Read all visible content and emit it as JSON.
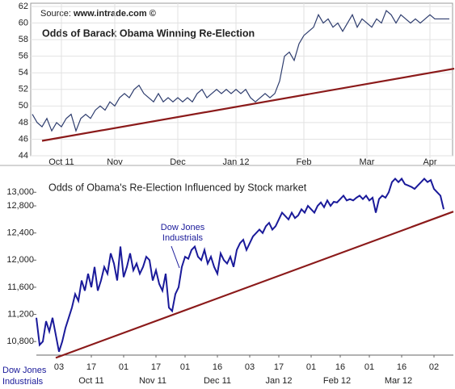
{
  "chart_data": [
    {
      "type": "line",
      "title": "Odds of Barack Obama Winning Re-Election",
      "source": "Source:",
      "source_site": "www.intrade.com ©",
      "color": "#2e3d6e",
      "grid": true,
      "xlim": [
        0,
        87
      ],
      "ylim": [
        44,
        62
      ],
      "yticks": [
        44,
        46,
        48,
        50,
        52,
        54,
        56,
        58,
        60,
        62
      ],
      "xticks": [
        {
          "value": 6,
          "label": "Oct 11"
        },
        {
          "value": 17,
          "label": "Nov"
        },
        {
          "value": 30,
          "label": "Dec"
        },
        {
          "value": 42,
          "label": "Jan 12"
        },
        {
          "value": 56,
          "label": "Feb"
        },
        {
          "value": 69,
          "label": "Mar"
        },
        {
          "value": 82,
          "label": "Apr"
        }
      ],
      "values": [
        49,
        48,
        47.5,
        48.5,
        47,
        48,
        47.5,
        48.5,
        49,
        47,
        48.5,
        49,
        48.5,
        49.5,
        50,
        49.5,
        50.5,
        50,
        51,
        51.5,
        51,
        52,
        52.5,
        51.5,
        51,
        50.5,
        51.5,
        50.5,
        51,
        50.5,
        51,
        50.5,
        51,
        50.5,
        51.5,
        52,
        51,
        51.5,
        52,
        51.5,
        52,
        51.5,
        52,
        51.5,
        52,
        51,
        50.5,
        51,
        51.5,
        51,
        51.5,
        53,
        56,
        56.5,
        55.5,
        57.5,
        58.5,
        59,
        59.5,
        61,
        60,
        60.5,
        59.5,
        60,
        59,
        60,
        61,
        59.5,
        60.5,
        60,
        59.5,
        60.5,
        60,
        61.5,
        61,
        60,
        61,
        60.5,
        60,
        60.5,
        60,
        60.5,
        61,
        60.5,
        60.5,
        60.5,
        60.5
      ],
      "trend": {
        "color": "#8b1a1a",
        "x": [
          2,
          87
        ],
        "values": [
          45.8,
          54.5
        ]
      }
    },
    {
      "type": "line",
      "title": "Odds of Obama's Re-Election Influenced by Stock market",
      "annotation": [
        "Dow Jones",
        "Industrials"
      ],
      "axis_note": [
        "Dow Jones",
        "Industrials"
      ],
      "color": "#1a1a9a",
      "grid": false,
      "xlim": [
        0,
        129
      ],
      "ylim": [
        10600,
        13360
      ],
      "yticks": [
        {
          "value": 10800,
          "label": "10,800"
        },
        {
          "value": 11200,
          "label": "11,200"
        },
        {
          "value": 11600,
          "label": "11,600"
        },
        {
          "value": 12000,
          "label": "12,000"
        },
        {
          "value": 12400,
          "label": "12,400"
        },
        {
          "value": 12800,
          "label": "12,800"
        },
        {
          "value": 13000,
          "label": "13,000"
        }
      ],
      "xticks": [
        {
          "value": 7,
          "label": "03"
        },
        {
          "value": 17,
          "label": "17"
        },
        {
          "value": 27,
          "label": "01"
        },
        {
          "value": 37,
          "label": "17"
        },
        {
          "value": 46,
          "label": "01"
        },
        {
          "value": 56,
          "label": "16"
        },
        {
          "value": 66,
          "label": "03"
        },
        {
          "value": 75,
          "label": "17"
        },
        {
          "value": 85,
          "label": "01"
        },
        {
          "value": 94,
          "label": "16"
        },
        {
          "value": 103,
          "label": "01"
        },
        {
          "value": 113,
          "label": "16"
        },
        {
          "value": 123,
          "label": "02"
        }
      ],
      "xgroups": [
        {
          "value": 17,
          "label": "Oct 11"
        },
        {
          "value": 36,
          "label": "Nov 11"
        },
        {
          "value": 56,
          "label": "Dec 11"
        },
        {
          "value": 75,
          "label": "Jan 12"
        },
        {
          "value": 93,
          "label": "Feb 12"
        },
        {
          "value": 112,
          "label": "Mar 12"
        }
      ],
      "values": [
        11150,
        10750,
        10800,
        11100,
        10950,
        11150,
        10900,
        10650,
        10800,
        11000,
        11150,
        11300,
        11500,
        11400,
        11700,
        11550,
        11800,
        11600,
        11900,
        11550,
        11700,
        11900,
        11800,
        12100,
        11950,
        11700,
        12200,
        11750,
        11900,
        12100,
        11850,
        11950,
        11800,
        11900,
        12050,
        12000,
        11700,
        11850,
        11650,
        11550,
        11800,
        11300,
        11250,
        11500,
        11600,
        11900,
        12050,
        12020,
        12150,
        12200,
        12050,
        12000,
        12150,
        11950,
        12050,
        11900,
        11800,
        12100,
        12000,
        11950,
        12050,
        11900,
        12150,
        12250,
        12300,
        12150,
        12250,
        12350,
        12400,
        12450,
        12400,
        12500,
        12550,
        12450,
        12500,
        12600,
        12700,
        12650,
        12600,
        12700,
        12620,
        12660,
        12750,
        12700,
        12800,
        12750,
        12700,
        12800,
        12850,
        12780,
        12880,
        12800,
        12860,
        12850,
        12900,
        12950,
        12880,
        12900,
        12880,
        12920,
        12950,
        12900,
        12950,
        12880,
        12920,
        12700,
        12900,
        12950,
        12920,
        13000,
        13150,
        13200,
        13150,
        13200,
        13120,
        13100,
        13080,
        13050,
        13100,
        13150,
        13200,
        13150,
        13180,
        13050,
        13000,
        12950,
        12750
      ],
      "trend": {
        "color": "#8b1a1a",
        "x": [
          6,
          129
        ],
        "values": [
          10560,
          12715
        ]
      }
    }
  ]
}
